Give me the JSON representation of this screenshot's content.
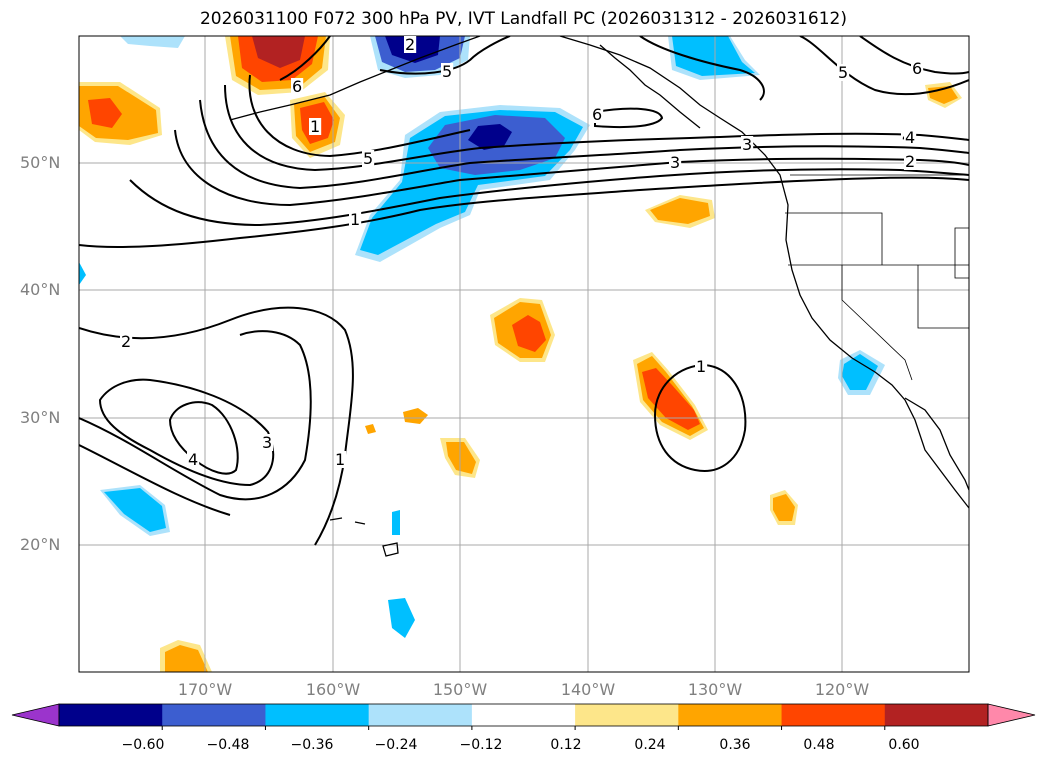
{
  "title": "2026031100 F072 300 hPa PV, IVT Landfall PC (2026031312 - 2026031612)",
  "lat_labels": [
    "50°N",
    "40°N",
    "30°N",
    "20°N"
  ],
  "lon_labels": [
    "170°W",
    "160°W",
    "150°W",
    "140°W",
    "130°W",
    "120°W"
  ],
  "colorbar": {
    "ticks": [
      "−0.60",
      "−0.48",
      "−0.36",
      "−0.24",
      "−0.12",
      "0.12",
      "0.24",
      "0.36",
      "0.48",
      "0.60"
    ],
    "colors": [
      "#9b34cc",
      "#00008b",
      "#3c5ed0",
      "#00bfff",
      "#ade2fb",
      "#ffffff",
      "#fde68a",
      "#ffa500",
      "#ff4500",
      "#b22222",
      "#ff88aa"
    ]
  },
  "contour_labels": [
    "1",
    "2",
    "3",
    "4",
    "5",
    "6",
    "6",
    "5",
    "4",
    "3",
    "2",
    "1",
    "2",
    "3",
    "4",
    "1",
    "6",
    "5",
    "1"
  ],
  "colors": {
    "neg_dark": "#00008b",
    "neg_mid": "#3c5ed0",
    "neg": "#00bfff",
    "neg_light": "#ade2fb",
    "pos_light": "#fde68a",
    "pos": "#ffa500",
    "pos_mid": "#ff4500",
    "pos_dark": "#b22222"
  }
}
